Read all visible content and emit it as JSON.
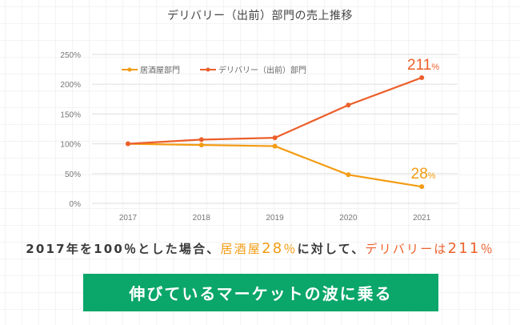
{
  "chart_data": {
    "type": "line",
    "title": "デリバリー（出前）部門の売上推移",
    "xlabel": "",
    "ylabel": "",
    "categories": [
      "2017",
      "2018",
      "2019",
      "2020",
      "2021"
    ],
    "series": [
      {
        "name": "居酒屋部門",
        "color": "#f39c12",
        "values": [
          100,
          98,
          96,
          48,
          28
        ]
      },
      {
        "name": "デリバリー（出前）部門",
        "color": "#ec5f2a",
        "values": [
          100,
          107,
          110,
          165,
          211
        ]
      }
    ],
    "ylim": [
      0,
      250
    ],
    "yticks": [
      0,
      50,
      100,
      150,
      200,
      250
    ],
    "ytick_suffix": "%",
    "grid": true,
    "legend_position": "top-left",
    "annotations": [
      {
        "series": 1,
        "category": "2021",
        "value_text": "211",
        "unit_text": "%"
      },
      {
        "series": 0,
        "category": "2021",
        "value_text": "28",
        "unit_text": "%"
      }
    ]
  },
  "summary": {
    "part1": "2017年を100％とした場合、",
    "izakaya_label": "居酒屋",
    "izakaya_value": "28",
    "izakaya_unit": "％",
    "part2": "に対して、",
    "delivery_label": "デリバリーは",
    "delivery_value": "211",
    "delivery_unit": "％"
  },
  "cta": {
    "label": "伸びているマーケットの波に乗る",
    "color": "#0aa66a"
  }
}
